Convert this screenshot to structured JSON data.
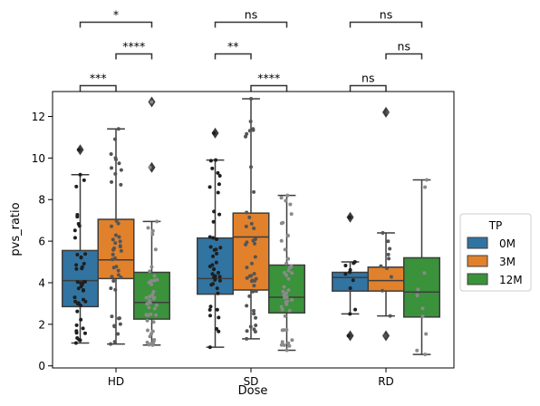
{
  "chart_data": {
    "type": "box",
    "title": "",
    "xlabel": "Dose",
    "ylabel": "pvs_ratio",
    "ylim": [
      -0.1,
      13.2
    ],
    "yticks": [
      0,
      2,
      4,
      6,
      8,
      10,
      12
    ],
    "categories": [
      "HD",
      "SD",
      "RD"
    ],
    "legend": {
      "title": "TP",
      "placement": "right",
      "entries": [
        {
          "name": "0M",
          "color": "#3274a1"
        },
        {
          "name": "3M",
          "color": "#e1812c"
        },
        {
          "name": "12M",
          "color": "#3a923a"
        }
      ]
    },
    "strip_colors": {
      "0M": "#1f1f1f",
      "3M": "#555555",
      "12M": "#8a8a8a"
    },
    "boxes": [
      {
        "category": "HD",
        "series": "0M",
        "whislo": 1.1,
        "q1": 2.85,
        "median": 4.1,
        "q3": 5.55,
        "whishi": 9.2,
        "fliers": [
          10.4
        ]
      },
      {
        "category": "HD",
        "series": "3M",
        "whislo": 1.05,
        "q1": 4.2,
        "median": 5.1,
        "q3": 7.05,
        "whishi": 11.4,
        "fliers": []
      },
      {
        "category": "HD",
        "series": "12M",
        "whislo": 1.0,
        "q1": 2.25,
        "median": 3.05,
        "q3": 4.5,
        "whishi": 6.95,
        "fliers": [
          9.55,
          12.7
        ]
      },
      {
        "category": "SD",
        "series": "0M",
        "whislo": 0.9,
        "q1": 3.45,
        "median": 4.2,
        "q3": 6.15,
        "whishi": 9.9,
        "fliers": [
          11.2
        ]
      },
      {
        "category": "SD",
        "series": "3M",
        "whislo": 1.3,
        "q1": 3.65,
        "median": 6.2,
        "q3": 7.35,
        "whishi": 12.85,
        "fliers": []
      },
      {
        "category": "SD",
        "series": "12M",
        "whislo": 0.75,
        "q1": 2.55,
        "median": 3.3,
        "q3": 4.85,
        "whishi": 8.2,
        "fliers": []
      },
      {
        "category": "RD",
        "series": "0M",
        "whislo": 2.5,
        "q1": 3.6,
        "median": 4.25,
        "q3": 4.5,
        "whishi": 5.0,
        "fliers": [
          1.45,
          7.15
        ]
      },
      {
        "category": "RD",
        "series": "3M",
        "whislo": 2.4,
        "q1": 3.6,
        "median": 4.1,
        "q3": 4.75,
        "whishi": 6.4,
        "fliers": [
          1.45,
          12.2
        ]
      },
      {
        "category": "RD",
        "series": "12M",
        "whislo": 0.55,
        "q1": 2.35,
        "median": 3.55,
        "q3": 5.2,
        "whishi": 8.95,
        "fliers": []
      }
    ],
    "significance": [
      {
        "category": "HD",
        "from": "0M",
        "to": "12M",
        "level": 3,
        "label": "*"
      },
      {
        "category": "HD",
        "from": "3M",
        "to": "12M",
        "level": 2,
        "label": "****"
      },
      {
        "category": "HD",
        "from": "0M",
        "to": "3M",
        "level": 1,
        "label": "***"
      },
      {
        "category": "SD",
        "from": "0M",
        "to": "12M",
        "level": 3,
        "label": "ns"
      },
      {
        "category": "SD",
        "from": "0M",
        "to": "3M",
        "level": 2,
        "label": "**"
      },
      {
        "category": "SD",
        "from": "3M",
        "to": "12M",
        "level": 1,
        "label": "****"
      },
      {
        "category": "RD",
        "from": "0M",
        "to": "12M",
        "level": 3,
        "label": "ns"
      },
      {
        "category": "RD",
        "from": "3M",
        "to": "12M",
        "level": 2,
        "label": "ns"
      },
      {
        "category": "RD",
        "from": "0M",
        "to": "3M",
        "level": 1,
        "label": "ns"
      }
    ]
  }
}
